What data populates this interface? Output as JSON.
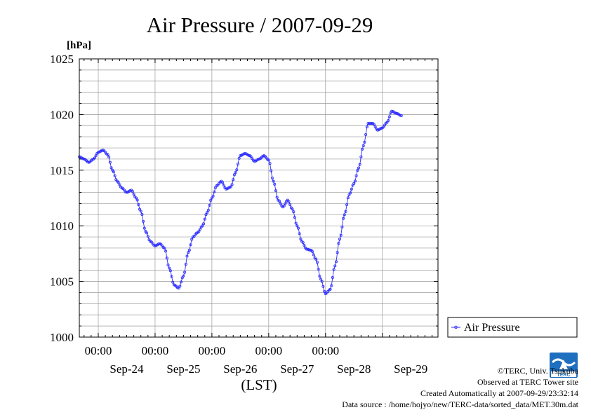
{
  "colors": {
    "series": "#2b2bff",
    "grid": "#999999",
    "axis": "#000000"
  },
  "logo_text": "TERC",
  "footer": {
    "copyright": "©TERC, Univ. Tsukuba",
    "observed": "Observed at TERC Tower site",
    "created": "Created Automatically at 2007-09-29/23:32:14",
    "source": "Data source : /home/hojyo/new/TERC-data/sorted_data/MET.30m.dat"
  },
  "chart_data": {
    "type": "line",
    "title": "Air Pressure / 2007-09-29",
    "ylabel": "[hPa]",
    "xlabel": "(LST)",
    "ylim": [
      1000,
      1025
    ],
    "yticks": [
      "1000",
      "1005",
      "1010",
      "1015",
      "1020",
      "1025"
    ],
    "xlim": [
      "2007-09-23 16:00",
      "2007-09-29 23:30"
    ],
    "time_ticks": [
      "00:00",
      "00:00",
      "00:00",
      "00:00",
      "00:00"
    ],
    "date_labels": [
      "Sep-24",
      "Sep-25",
      "Sep-26",
      "Sep-27",
      "Sep-28",
      "Sep-29"
    ],
    "grid": true,
    "legend": {
      "position": "right",
      "entries": [
        "Air Pressure"
      ]
    },
    "series": [
      {
        "name": "Air Pressure",
        "points": [
          [
            "2007-09-23 16:00",
            1016.2
          ],
          [
            "2007-09-23 18:00",
            1016.0
          ],
          [
            "2007-09-23 20:00",
            1015.7
          ],
          [
            "2007-09-23 22:00",
            1016.0
          ],
          [
            "2007-09-24 00:00",
            1016.6
          ],
          [
            "2007-09-24 02:00",
            1016.8
          ],
          [
            "2007-09-24 04:00",
            1016.4
          ],
          [
            "2007-09-24 06:00",
            1015.0
          ],
          [
            "2007-09-24 08:00",
            1014.0
          ],
          [
            "2007-09-24 10:00",
            1013.4
          ],
          [
            "2007-09-24 12:00",
            1013.0
          ],
          [
            "2007-09-24 14:00",
            1013.2
          ],
          [
            "2007-09-24 16:00",
            1012.5
          ],
          [
            "2007-09-24 18:00",
            1011.3
          ],
          [
            "2007-09-24 20:00",
            1009.5
          ],
          [
            "2007-09-24 22:00",
            1008.6
          ],
          [
            "2007-09-25 00:00",
            1008.2
          ],
          [
            "2007-09-25 02:00",
            1008.4
          ],
          [
            "2007-09-25 04:00",
            1008.0
          ],
          [
            "2007-09-25 06:00",
            1006.2
          ],
          [
            "2007-09-25 08:00",
            1004.7
          ],
          [
            "2007-09-25 10:00",
            1004.4
          ],
          [
            "2007-09-25 12:00",
            1005.5
          ],
          [
            "2007-09-25 14:00",
            1007.6
          ],
          [
            "2007-09-25 16:00",
            1009.0
          ],
          [
            "2007-09-25 18:00",
            1009.4
          ],
          [
            "2007-09-25 20:00",
            1010.0
          ],
          [
            "2007-09-25 22:00",
            1011.2
          ],
          [
            "2007-09-26 00:00",
            1012.5
          ],
          [
            "2007-09-26 02:00",
            1013.6
          ],
          [
            "2007-09-26 04:00",
            1014.0
          ],
          [
            "2007-09-26 06:00",
            1013.3
          ],
          [
            "2007-09-26 08:00",
            1013.5
          ],
          [
            "2007-09-26 10:00",
            1014.8
          ],
          [
            "2007-09-26 12:00",
            1016.3
          ],
          [
            "2007-09-26 14:00",
            1016.5
          ],
          [
            "2007-09-26 16:00",
            1016.3
          ],
          [
            "2007-09-26 18:00",
            1015.8
          ],
          [
            "2007-09-26 20:00",
            1016.0
          ],
          [
            "2007-09-26 22:00",
            1016.3
          ],
          [
            "2007-09-27 00:00",
            1015.9
          ],
          [
            "2007-09-27 02:00",
            1014.0
          ],
          [
            "2007-09-27 04:00",
            1012.3
          ],
          [
            "2007-09-27 06:00",
            1011.7
          ],
          [
            "2007-09-27 08:00",
            1012.3
          ],
          [
            "2007-09-27 10:00",
            1011.5
          ],
          [
            "2007-09-27 12:00",
            1010.0
          ],
          [
            "2007-09-27 14:00",
            1008.6
          ],
          [
            "2007-09-27 16:00",
            1007.9
          ],
          [
            "2007-09-27 18:00",
            1007.8
          ],
          [
            "2007-09-27 20:00",
            1007.0
          ],
          [
            "2007-09-27 22:00",
            1005.2
          ],
          [
            "2007-09-28 00:00",
            1003.9
          ],
          [
            "2007-09-28 02:00",
            1004.3
          ],
          [
            "2007-09-28 04:00",
            1006.4
          ],
          [
            "2007-09-28 06:00",
            1008.8
          ],
          [
            "2007-09-28 08:00",
            1011.0
          ],
          [
            "2007-09-28 10:00",
            1012.8
          ],
          [
            "2007-09-28 12:00",
            1013.8
          ],
          [
            "2007-09-28 14:00",
            1015.2
          ],
          [
            "2007-09-28 16:00",
            1017.2
          ],
          [
            "2007-09-28 18:00",
            1019.2
          ],
          [
            "2007-09-28 20:00",
            1019.2
          ],
          [
            "2007-09-28 22:00",
            1018.6
          ],
          [
            "2007-09-29 00:00",
            1018.8
          ],
          [
            "2007-09-29 02:00",
            1019.3
          ],
          [
            "2007-09-29 04:00",
            1020.3
          ],
          [
            "2007-09-29 06:00",
            1020.1
          ],
          [
            "2007-09-29 08:00",
            1019.9
          ]
        ]
      }
    ]
  }
}
